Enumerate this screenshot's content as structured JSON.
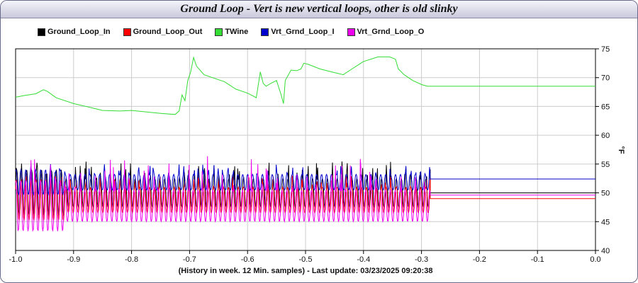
{
  "chart_data": {
    "type": "line",
    "title": "Ground Loop - Vert is new vertical loops, other is old slinky",
    "xlabel": "(History in week. 12 Min. samples) - Last update: 03/23/2025 09:20:38",
    "ylabel": "°F",
    "xlim": [
      -1.0,
      0.0
    ],
    "ylim": [
      40,
      75
    ],
    "x_ticks": [
      "-1.0",
      "-0.9",
      "-0.8",
      "-0.7",
      "-0.6",
      "-0.5",
      "-0.4",
      "-0.3",
      "-0.2",
      "-0.1",
      "0.0"
    ],
    "y_ticks": [
      "40",
      "45",
      "50",
      "55",
      "60",
      "65",
      "70",
      "75"
    ],
    "y_axis_side": "right",
    "grid": true,
    "legend_position": "top-left",
    "data_end_x": -0.285,
    "series": [
      {
        "name": "Ground_Loop_In",
        "color": "#000000",
        "oscillation": {
          "period_x": 0.0085,
          "low": 47.5,
          "high": 52.5,
          "spike_high": 55.5
        },
        "final_value": 50.0
      },
      {
        "name": "Ground_Loop_Out",
        "color": "#ff0000",
        "oscillation": {
          "period_x": 0.0085,
          "low": 46.5,
          "high": 51.0,
          "spike_high": 53.0
        },
        "final_value": 49.0
      },
      {
        "name": "TWine",
        "color": "#33dd33",
        "points": [
          [
            -1.0,
            66.6
          ],
          [
            -0.985,
            66.9
          ],
          [
            -0.965,
            67.2
          ],
          [
            -0.952,
            67.9
          ],
          [
            -0.945,
            67.6
          ],
          [
            -0.93,
            66.5
          ],
          [
            -0.9,
            65.5
          ],
          [
            -0.87,
            64.8
          ],
          [
            -0.85,
            64.3
          ],
          [
            -0.82,
            64.2
          ],
          [
            -0.8,
            64.3
          ],
          [
            -0.78,
            64.1
          ],
          [
            -0.75,
            63.8
          ],
          [
            -0.725,
            63.6
          ],
          [
            -0.718,
            64.2
          ],
          [
            -0.713,
            67.0
          ],
          [
            -0.708,
            66.0
          ],
          [
            -0.703,
            69.5
          ],
          [
            -0.698,
            71.0
          ],
          [
            -0.693,
            73.5
          ],
          [
            -0.688,
            72.0
          ],
          [
            -0.675,
            70.5
          ],
          [
            -0.655,
            69.8
          ],
          [
            -0.64,
            69.3
          ],
          [
            -0.62,
            68.0
          ],
          [
            -0.6,
            67.3
          ],
          [
            -0.59,
            66.8
          ],
          [
            -0.585,
            66.5
          ],
          [
            -0.578,
            71.0
          ],
          [
            -0.573,
            69.0
          ],
          [
            -0.568,
            68.5
          ],
          [
            -0.56,
            69.0
          ],
          [
            -0.55,
            69.5
          ],
          [
            -0.542,
            67.0
          ],
          [
            -0.538,
            65.5
          ],
          [
            -0.535,
            69.5
          ],
          [
            -0.525,
            71.3
          ],
          [
            -0.515,
            71.2
          ],
          [
            -0.508,
            71.5
          ],
          [
            -0.503,
            72.5
          ],
          [
            -0.495,
            72.3
          ],
          [
            -0.475,
            71.5
          ],
          [
            -0.455,
            71.0
          ],
          [
            -0.435,
            70.5
          ],
          [
            -0.42,
            71.5
          ],
          [
            -0.4,
            72.8
          ],
          [
            -0.375,
            73.6
          ],
          [
            -0.355,
            73.6
          ],
          [
            -0.345,
            73.2
          ],
          [
            -0.34,
            71.5
          ],
          [
            -0.33,
            70.5
          ],
          [
            -0.315,
            69.5
          ],
          [
            -0.3,
            68.8
          ],
          [
            -0.29,
            68.5
          ],
          [
            0.0,
            68.5
          ]
        ]
      },
      {
        "name": "Vrt_Grnd_Loop_I",
        "color": "#0000cc",
        "oscillation": {
          "period_x": 0.0085,
          "low": 50.5,
          "high": 53.2,
          "spike_high": 55.0
        },
        "final_value": 52.4
      },
      {
        "name": "Vrt_Grnd_Loop_O",
        "color": "#ee00ee",
        "oscillation": {
          "period_x": 0.0085,
          "low": 45.0,
          "high": 50.5,
          "spike_high": 56.5
        },
        "final_value": 49.6
      }
    ]
  }
}
